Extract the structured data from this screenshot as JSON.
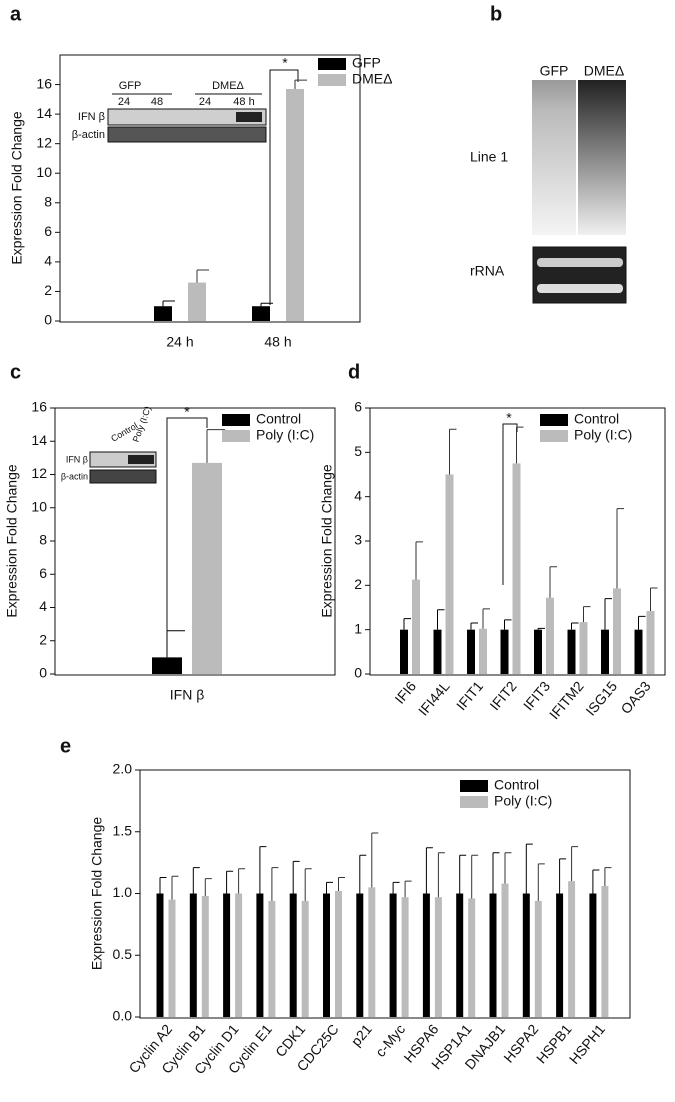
{
  "chart_data": [
    {
      "type": "bar",
      "panel": "a",
      "ylabel": "Expression Fold Change",
      "categories": [
        "24 h",
        "48 h"
      ],
      "series": [
        {
          "name": "GFP",
          "color": "#000000",
          "values": [
            1.0,
            1.0
          ],
          "errors": [
            0.35,
            0.2
          ]
        },
        {
          "name": "DMEΔ",
          "color": "#bbbbbb",
          "values": [
            2.6,
            15.7
          ],
          "errors": [
            0.85,
            0.6
          ]
        }
      ],
      "ylim": [
        0,
        18
      ],
      "yticks": [
        0,
        2,
        4,
        6,
        8,
        10,
        12,
        14,
        16
      ],
      "annotation": "*",
      "inset": {
        "group_labels": [
          "GFP",
          "DMEΔ"
        ],
        "lane_labels": [
          "24",
          "48",
          "24",
          "48 h"
        ],
        "row_labels": [
          "IFN β",
          "β-actin"
        ]
      }
    },
    {
      "type": "bar",
      "panel": "c",
      "ylabel": "Expression Fold Change",
      "categories": [
        "IFN β"
      ],
      "series": [
        {
          "name": "Control",
          "color": "#000000",
          "values": [
            1.0
          ],
          "errors": [
            1.6
          ]
        },
        {
          "name": "Poly (I:C)",
          "color": "#bbbbbb",
          "values": [
            12.7
          ],
          "errors": [
            2.0
          ]
        }
      ],
      "ylim": [
        0,
        16
      ],
      "yticks": [
        0,
        2,
        4,
        6,
        8,
        10,
        12,
        14,
        16
      ],
      "annotation": "*",
      "inset": {
        "lane_labels": [
          "Control",
          "Poly (I:C)"
        ],
        "row_labels": [
          "IFN β",
          "β-actin"
        ]
      }
    },
    {
      "type": "bar",
      "panel": "d",
      "ylabel": "Expression Fold Change",
      "categories": [
        "IFI6",
        "IFI44L",
        "IFIT1",
        "IFIT2",
        "IFIT3",
        "IFITM2",
        "ISG15",
        "OAS3"
      ],
      "series": [
        {
          "name": "Control",
          "color": "#000000",
          "values": [
            1,
            1,
            1,
            1,
            1,
            1,
            1,
            1
          ],
          "errors": [
            0.25,
            0.45,
            0.15,
            0.22,
            0.03,
            0.15,
            0.7,
            0.3
          ]
        },
        {
          "name": "Poly (I:C)",
          "color": "#bbbbbb",
          "values": [
            2.13,
            4.5,
            1.02,
            4.75,
            1.72,
            1.17,
            1.93,
            1.42
          ],
          "errors": [
            0.85,
            1.02,
            0.45,
            0.82,
            0.7,
            0.35,
            1.8,
            0.52
          ]
        }
      ],
      "ylim": [
        0,
        6
      ],
      "yticks": [
        0,
        1,
        2,
        3,
        4,
        5,
        6
      ],
      "annotation": "*"
    },
    {
      "type": "bar",
      "panel": "e",
      "ylabel": "Expression Fold Change",
      "categories": [
        "Cyclin A2",
        "Cyclin B1",
        "Cyclin D1",
        "Cyclin E1",
        "CDK1",
        "CDC25C",
        "p21",
        "c-Myc",
        "HSPA6",
        "HSP1A1",
        "DNAJB1",
        "HSPA2",
        "HSPB1",
        "HSPH1"
      ],
      "series": [
        {
          "name": "Control",
          "color": "#000000",
          "values": [
            1,
            1,
            1,
            1,
            1,
            1,
            1,
            1,
            1,
            1,
            1,
            1,
            1,
            1
          ],
          "errors": [
            0.13,
            0.21,
            0.18,
            0.38,
            0.26,
            0.09,
            0.31,
            0.09,
            0.37,
            0.31,
            0.33,
            0.4,
            0.28,
            0.19
          ]
        },
        {
          "name": "Poly (I:C)",
          "color": "#bbbbbb",
          "values": [
            0.95,
            0.98,
            1.0,
            0.94,
            0.94,
            1.02,
            1.05,
            0.97,
            0.97,
            0.96,
            1.08,
            0.94,
            1.1,
            1.06
          ],
          "errors": [
            0.19,
            0.14,
            0.2,
            0.27,
            0.26,
            0.11,
            0.44,
            0.13,
            0.36,
            0.35,
            0.25,
            0.3,
            0.28,
            0.15
          ]
        }
      ],
      "ylim": [
        0,
        2.0
      ],
      "yticks": [
        {
          "value": 0,
          "label": "0.0"
        },
        {
          "value": 0.5,
          "label": "0.5"
        },
        {
          "value": 1,
          "label": "1.0"
        },
        {
          "value": 1.5,
          "label": "1.5"
        },
        {
          "value": 2,
          "label": "2.0"
        }
      ]
    }
  ],
  "blot_b": {
    "panel": "b",
    "lane_labels": [
      "GFP",
      "DMEΔ"
    ],
    "row_labels": [
      "Line 1",
      "rRNA"
    ]
  }
}
